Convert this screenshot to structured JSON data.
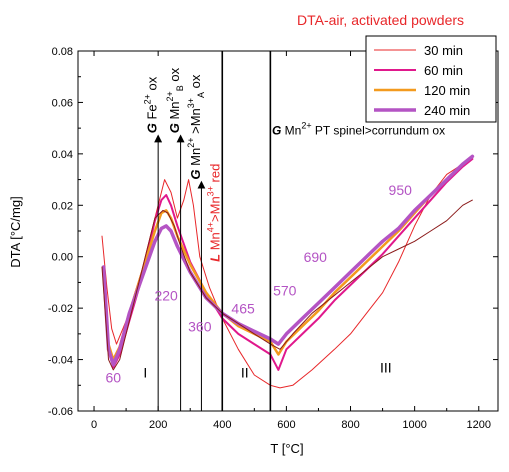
{
  "chart_data": {
    "type": "line",
    "title": "DTA-air, activated powders",
    "xlabel": "T  [°C]",
    "ylabel": "DTA  [°C/mg]",
    "xlim": [
      -50,
      1260
    ],
    "ylim": [
      -0.06,
      0.08
    ],
    "x_ticks": [
      0,
      200,
      400,
      600,
      800,
      1000,
      1200
    ],
    "y_ticks": [
      -0.06,
      -0.04,
      -0.02,
      0.0,
      0.02,
      0.04,
      0.06,
      0.08
    ],
    "x_tick_labels": [
      "0",
      "200",
      "400",
      "600",
      "800",
      "1000",
      "1200"
    ],
    "y_tick_labels": [
      "-0.06",
      "-0.04",
      "-0.02",
      "0.00",
      "0.02",
      "0.04",
      "0.06",
      "0.08"
    ],
    "legend_position": "top-right",
    "series": [
      {
        "name": "30  min",
        "color": "#e8272a",
        "width": 1,
        "x": [
          25,
          40,
          55,
          70,
          100,
          150,
          190,
          220,
          240,
          260,
          280,
          295,
          310,
          330,
          360,
          400,
          450,
          500,
          550,
          580,
          620,
          680,
          750,
          800,
          850,
          900,
          950,
          1000,
          1050,
          1100,
          1150,
          1180
        ],
        "y": [
          0.008,
          -0.012,
          -0.028,
          -0.034,
          -0.025,
          -0.005,
          0.015,
          0.03,
          0.025,
          0.015,
          0.022,
          0.03,
          0.02,
          0.0,
          -0.012,
          -0.024,
          -0.036,
          -0.046,
          -0.05,
          -0.051,
          -0.05,
          -0.044,
          -0.036,
          -0.03,
          -0.022,
          -0.014,
          -0.002,
          0.012,
          0.024,
          0.032,
          0.036,
          0.038
        ]
      },
      {
        "name": "60  min",
        "color": "#e0188c",
        "width": 2,
        "x": [
          30,
          45,
          60,
          80,
          110,
          150,
          190,
          210,
          225,
          240,
          260,
          300,
          350,
          400,
          450,
          500,
          550,
          575,
          600,
          650,
          700,
          750,
          800,
          850,
          900,
          950,
          1000,
          1050,
          1100,
          1150,
          1180
        ],
        "y": [
          -0.004,
          -0.036,
          -0.043,
          -0.038,
          -0.025,
          -0.008,
          0.014,
          0.022,
          0.024,
          0.02,
          0.012,
          -0.002,
          -0.014,
          -0.024,
          -0.03,
          -0.034,
          -0.038,
          -0.044,
          -0.036,
          -0.03,
          -0.024,
          -0.017,
          -0.011,
          -0.005,
          0.001,
          0.008,
          0.015,
          0.022,
          0.029,
          0.035,
          0.038
        ]
      },
      {
        "name": "120 min",
        "color": "#f39a1e",
        "width": 2.5,
        "x": [
          30,
          45,
          60,
          80,
          110,
          150,
          190,
          210,
          225,
          240,
          260,
          300,
          350,
          400,
          450,
          500,
          550,
          575,
          600,
          650,
          700,
          750,
          800,
          850,
          900,
          950,
          1000,
          1050,
          1100,
          1150,
          1180
        ],
        "y": [
          -0.004,
          -0.034,
          -0.04,
          -0.035,
          -0.022,
          -0.006,
          0.01,
          0.017,
          0.018,
          0.015,
          0.008,
          -0.003,
          -0.014,
          -0.022,
          -0.027,
          -0.03,
          -0.033,
          -0.038,
          -0.033,
          -0.027,
          -0.021,
          -0.014,
          -0.008,
          -0.002,
          0.004,
          0.01,
          0.017,
          0.024,
          0.03,
          0.036,
          0.039
        ]
      },
      {
        "name": "240 min",
        "color": "#b454c4",
        "width": 3.5,
        "x": [
          30,
          45,
          60,
          80,
          110,
          150,
          190,
          210,
          225,
          240,
          260,
          300,
          350,
          400,
          450,
          500,
          550,
          575,
          600,
          650,
          700,
          750,
          800,
          850,
          900,
          950,
          1000,
          1050,
          1100,
          1150,
          1180
        ],
        "y": [
          -0.004,
          -0.036,
          -0.042,
          -0.036,
          -0.022,
          -0.008,
          0.006,
          0.011,
          0.012,
          0.01,
          0.004,
          -0.006,
          -0.016,
          -0.022,
          -0.026,
          -0.029,
          -0.032,
          -0.034,
          -0.03,
          -0.024,
          -0.018,
          -0.012,
          -0.006,
          0.0,
          0.006,
          0.011,
          0.018,
          0.024,
          0.03,
          0.036,
          0.039
        ]
      },
      {
        "name": "",
        "color": "#8b1a1a",
        "width": 1,
        "x": [
          25,
          45,
          60,
          80,
          110,
          150,
          190,
          215,
          230,
          250,
          270,
          300,
          350,
          400,
          450,
          500,
          550,
          580,
          620,
          680,
          750,
          800,
          850,
          900,
          950,
          1000,
          1050,
          1100,
          1150,
          1180
        ],
        "y": [
          -0.004,
          -0.04,
          -0.044,
          -0.04,
          -0.025,
          -0.005,
          0.015,
          0.018,
          0.017,
          0.012,
          0.004,
          -0.006,
          -0.016,
          -0.022,
          -0.026,
          -0.03,
          -0.034,
          -0.036,
          -0.03,
          -0.022,
          -0.015,
          -0.01,
          -0.005,
          0.0,
          0.003,
          0.006,
          0.01,
          0.014,
          0.02,
          0.022
        ]
      }
    ],
    "annotations": {
      "arrows": [
        {
          "x": 200,
          "y_from": -0.06,
          "y_to": 0.046
        },
        {
          "x": 270,
          "y_from": -0.06,
          "y_to": 0.046
        },
        {
          "x": 335,
          "y_from": -0.06,
          "y_to": 0.028
        }
      ],
      "vlines": [
        400,
        550
      ],
      "rotated_labels": [
        {
          "x": 195,
          "y": 0.048,
          "prefix": "G",
          "main": "Fe",
          "sup": "2+",
          "sub": "",
          "tail": " ox",
          "color": "#000000"
        },
        {
          "x": 265,
          "y": 0.048,
          "prefix": "G",
          "main": "Mn",
          "sup": "2+",
          "sub": "B",
          "tail": " ox",
          "color": "#000000"
        },
        {
          "x": 330,
          "y": 0.03,
          "prefix": "G",
          "main": "Mn",
          "sup": "2+",
          "sub": "",
          "tail": " >Mn",
          "sup2": "3+",
          "sub2": "A",
          "tail2": " ox",
          "color": "#000000"
        },
        {
          "x": 392,
          "y": -0.002,
          "prefix": "L",
          "main": "Mn",
          "sup": "4+",
          "sub": "",
          "tail": ">Mn",
          "sup2": "3+",
          "sub2": "",
          "tail2": " red",
          "color": "#e8272a"
        }
      ],
      "spinel_label": {
        "prefix": "G",
        "main": " Mn",
        "sup": "2+",
        "tail": " PT spinel>corrundum ox",
        "x": 555,
        "y": 0.0475
      },
      "temperature_labels": [
        {
          "text": "60",
          "x": 60,
          "y": -0.049
        },
        {
          "text": "220",
          "x": 225,
          "y": -0.017
        },
        {
          "text": "360",
          "x": 330,
          "y": -0.029
        },
        {
          "text": "465",
          "x": 465,
          "y": -0.022
        },
        {
          "text": "570",
          "x": 595,
          "y": -0.015
        },
        {
          "text": "690",
          "x": 690,
          "y": -0.002
        },
        {
          "text": "950",
          "x": 955,
          "y": 0.024
        }
      ],
      "regions": [
        {
          "text": "I",
          "x": 160,
          "y": -0.047
        },
        {
          "text": "II",
          "x": 470,
          "y": -0.047
        },
        {
          "text": "III",
          "x": 910,
          "y": -0.045
        }
      ]
    }
  }
}
